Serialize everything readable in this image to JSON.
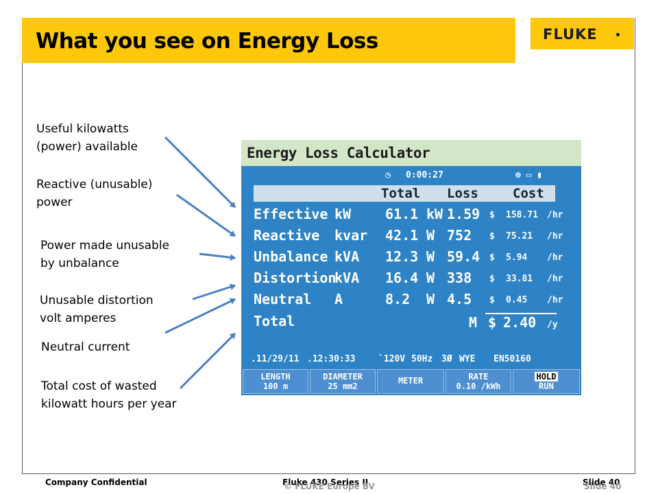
{
  "slide": {
    "title": "What you see on Energy Loss",
    "logo": "FLUKE",
    "accent_color": "#fdc80b",
    "arrow_color": "#4a7fc0"
  },
  "labels": [
    {
      "line1": "Useful kilowatts",
      "line2": "(power) available"
    },
    {
      "line1": "Reactive (unusable)",
      "line2": "power"
    },
    {
      "line1": "Power made unusable",
      "line2": "by unbalance"
    },
    {
      "line1": "Unusable distortion",
      "line2": "volt amperes"
    },
    {
      "line1": "Neutral current",
      "line2": ""
    },
    {
      "line1": "Total cost of wasted",
      "line2": "kilowatt hours per year"
    }
  ],
  "screen": {
    "title": "Energy Loss Calculator",
    "timer": "0:00:27",
    "headers": {
      "total": "Total",
      "loss": "Loss",
      "cost": "Cost"
    },
    "rows": [
      {
        "name": "Effective",
        "unit": "kW",
        "total": "61.1",
        "loss_unit": "kW",
        "loss": "1.59",
        "cur": "$",
        "cost": "158.71",
        "per": "/hr"
      },
      {
        "name": "Reactive",
        "unit": "kvar",
        "total": "42.1",
        "loss_unit": "W",
        "loss": "752",
        "cur": "$",
        "cost": "75.21",
        "per": "/hr"
      },
      {
        "name": "Unbalance",
        "unit": "kVA",
        "total": "12.3",
        "loss_unit": "W",
        "loss": "59.4",
        "cur": "$",
        "cost": "5.94",
        "per": "/hr"
      },
      {
        "name": "Distortion",
        "unit": "kVA",
        "total": "16.4",
        "loss_unit": "W",
        "loss": "338",
        "cur": "$",
        "cost": "33.81",
        "per": "/hr"
      },
      {
        "name": "Neutral",
        "unit": "A",
        "total": "8.2",
        "loss_unit": "W",
        "loss": "4.5",
        "cur": "$",
        "cost": "0.45",
        "per": "/hr"
      }
    ],
    "total_row": {
      "name": "Total",
      "prefix": "M",
      "cur": "$",
      "value": "2.40",
      "per": "/y"
    },
    "info": {
      "date": ".11/29/11",
      "time": ".12:30:33",
      "volt": "`120V",
      "freq": "50Hz",
      "phase": "3Ø",
      "config": "WYE",
      "std": "EN50160"
    },
    "fkeys": [
      {
        "l1": "LENGTH",
        "l2": "100 m"
      },
      {
        "l1": "DIAMETER",
        "l2": "25 mm2"
      },
      {
        "l1": "METER",
        "l2": ""
      },
      {
        "l1": "RATE",
        "l2": "0.10 /kWh"
      },
      {
        "l1": "HOLD",
        "l2": "RUN"
      }
    ]
  },
  "footer": {
    "left": "Company Confidential",
    "center": "Fluke 430 Series II",
    "center_ghost": "© FLUKE Europe BV",
    "right": "Slide 40",
    "right_ghost": "Slide 40"
  }
}
